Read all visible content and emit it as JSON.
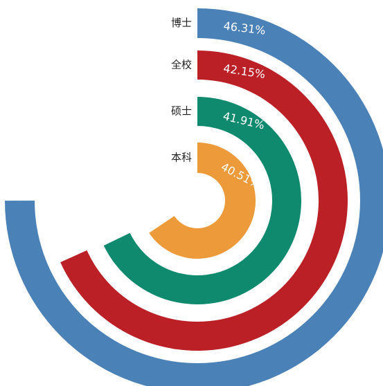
{
  "chart_data": {
    "type": "radial-bar",
    "categories": [
      "博士",
      "全校",
      "硕士",
      "本科"
    ],
    "values": [
      46.31,
      42.15,
      41.91,
      40.51
    ],
    "value_labels": [
      "46.31%",
      "42.15%",
      "41.91%",
      "40.51%"
    ],
    "colors": [
      "#4a82b8",
      "#bb2026",
      "#0f8a6e",
      "#ec9a3a"
    ],
    "rlim": [
      0,
      61.75
    ]
  }
}
